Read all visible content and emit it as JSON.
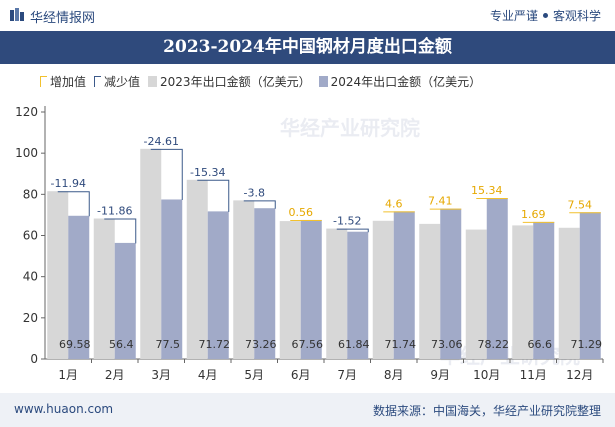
{
  "header": {
    "logo_text": "华经情报网",
    "tagline_1": "专业严谨",
    "tagline_2": "客观科学"
  },
  "title": "2023-2024年中国钢材月度出口金额",
  "legend": {
    "increase": "增加值",
    "decrease": "减少值",
    "series_2023": "2023年出口金额（亿美元）",
    "series_2024": "2024年出口金额（亿美元）"
  },
  "footer": {
    "website": "www.huaon.com",
    "source": "数据来源：中国海关，华经产业研究院整理"
  },
  "watermark": {
    "text_cn": "华经产业研究院",
    "text_en": "www.huaon.com"
  },
  "colors": {
    "series_2023": "#d7d7d7",
    "series_2024": "#a1aac8",
    "increase": "#f2c12e",
    "decrease": "#3c5a8a",
    "title_bar": "#2f4a7c"
  },
  "chart_data": {
    "type": "bar",
    "categories": [
      "1月",
      "2月",
      "3月",
      "4月",
      "5月",
      "6月",
      "7月",
      "8月",
      "9月",
      "10月",
      "11月",
      "12月"
    ],
    "series": [
      {
        "name": "2023年出口金额（亿美元）",
        "values": [
          81.52,
          68.26,
          102.11,
          87.06,
          77.06,
          67.0,
          63.36,
          67.14,
          65.65,
          62.88,
          64.91,
          63.75
        ]
      },
      {
        "name": "2024年出口金额（亿美元）",
        "values": [
          69.58,
          56.4,
          77.5,
          71.72,
          73.26,
          67.56,
          61.84,
          71.74,
          73.06,
          78.22,
          66.6,
          71.29
        ]
      }
    ],
    "change_labels": [
      "-11.94",
      "-11.86",
      "-24.61",
      "-15.34",
      "-3.8",
      "0.56",
      "-1.52",
      "4.6",
      "7.41",
      "15.34",
      "1.69",
      "7.54"
    ],
    "value_labels_2024": [
      "69.58",
      "56.4",
      "77.5",
      "71.72",
      "73.26",
      "67.56",
      "61.84",
      "71.74",
      "73.06",
      "78.22",
      "66.6",
      "71.29"
    ],
    "yticks": [
      "0",
      "20",
      "40",
      "60",
      "80",
      "100",
      "120"
    ],
    "ylim": [
      0,
      120
    ],
    "grid": false,
    "legend_position": "top-left"
  }
}
